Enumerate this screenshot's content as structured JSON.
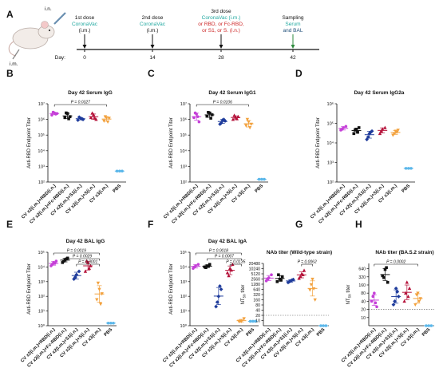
{
  "figure": {
    "panel_letters": [
      "A",
      "B",
      "C",
      "D",
      "E",
      "F",
      "G",
      "H"
    ],
    "timeline": {
      "route_labels": [
        "i.n.",
        "i.m."
      ],
      "day_label": "Day:",
      "doses": [
        {
          "day": 0,
          "title": "1st dose",
          "lines": [
            {
              "text": "CoronaVac",
              "color": "#21a8a0"
            },
            {
              "text": "(i.m.)",
              "color": "#111111"
            }
          ]
        },
        {
          "day": 14,
          "title": "2nd dose",
          "lines": [
            {
              "text": "CoronaVac",
              "color": "#21a8a0"
            },
            {
              "text": "(i.m.)",
              "color": "#111111"
            }
          ]
        },
        {
          "day": 28,
          "title": "3rd dose",
          "lines": [
            {
              "text": "CoronaVac (i.m.)",
              "color": "#21a8a0"
            },
            {
              "text": "or RBD, or Fc-RBD,",
              "color": "#cc2222"
            },
            {
              "text": "or S1, or S. (i.n.)",
              "color": "#cc2222"
            }
          ]
        },
        {
          "day": 42,
          "title": "Sampling",
          "lines": [
            {
              "text": "Serum",
              "color": "#21a8a0"
            },
            {
              "text": "and BAL",
              "color": "#1f4e79"
            }
          ]
        }
      ]
    },
    "group_labels": [
      "CV x2(i.m.)+RBD(i.n.)",
      "CV x2(i.m.)+Fc-RBD(i.n.)",
      "CV x2(i.m.)+S1(i.n.)",
      "CV x2(i.m.)+S(i.n.)",
      "CV x3(i.m.)",
      "PBS"
    ],
    "group_colors": [
      "#c53fd8",
      "#111111",
      "#1f3c9c",
      "#b5123a",
      "#f2a13d",
      "#5bb7ea"
    ],
    "group_markers": [
      "circle",
      "square",
      "diamond",
      "triangle",
      "triangle-down",
      "circle"
    ]
  },
  "chart_data": [
    {
      "panel": "B",
      "type": "scatter",
      "title": "Day 42 Serum IgG",
      "ylabel": "Anti-RBD Endpoint Titer",
      "scale": "log",
      "ylim": [
        100,
        10000000
      ],
      "yticks": [
        "10⁷",
        "10⁶",
        "10⁵",
        "10⁴",
        "10³",
        "10²"
      ],
      "comparisons": [
        {
          "from": 0,
          "to": 4,
          "label": "P = 0.0327"
        }
      ],
      "series": [
        {
          "values": [
            2600000,
            1900000,
            2400000,
            2900000,
            2200000
          ]
        },
        {
          "values": [
            2400000,
            1300000,
            1500000,
            2600000,
            1100000
          ]
        },
        {
          "values": [
            1200000,
            900000,
            1000000,
            1400000,
            1100000
          ]
        },
        {
          "values": [
            2000000,
            1300000,
            1000000,
            2500000,
            1200000
          ]
        },
        {
          "values": [
            1300000,
            800000,
            1200000,
            1500000,
            700000
          ]
        },
        {
          "values": [
            500,
            500,
            500
          ]
        }
      ]
    },
    {
      "panel": "C",
      "type": "scatter",
      "title": "Day 42 Serum IgG1",
      "ylabel": "Anti-RBD Endpoint Titer",
      "scale": "log",
      "ylim": [
        100,
        10000000
      ],
      "yticks": [
        "10⁷",
        "10⁶",
        "10⁵",
        "10⁴",
        "10³",
        "10²"
      ],
      "comparisons": [
        {
          "from": 0,
          "to": 4,
          "label": "P = 0.0106"
        }
      ],
      "series": [
        {
          "values": [
            2200000,
            1300000,
            700000,
            2600000,
            1500000
          ]
        },
        {
          "values": [
            2600000,
            1600000,
            2000000,
            2800000,
            1200000
          ]
        },
        {
          "values": [
            900000,
            500000,
            800000,
            600000,
            1000000
          ]
        },
        {
          "values": [
            1400000,
            1000000,
            1500000,
            1800000,
            1100000
          ]
        },
        {
          "values": [
            700000,
            400000,
            500000,
            1000000,
            300000
          ]
        },
        {
          "values": [
            150,
            150,
            150
          ]
        }
      ]
    },
    {
      "panel": "D",
      "type": "scatter",
      "title": "Day 42 Serum IgG2a",
      "ylabel": "Anti-RBD Endpoint Titer",
      "scale": "log",
      "ylim": [
        100,
        1000000
      ],
      "yticks": [
        "10⁶",
        "10⁵",
        "10⁴",
        "10³",
        "10²"
      ],
      "comparisons": [],
      "series": [
        {
          "values": [
            60000,
            45000,
            70000,
            50000
          ]
        },
        {
          "values": [
            50000,
            30000,
            60000,
            45000,
            35000
          ]
        },
        {
          "values": [
            30000,
            15000,
            40000,
            20000,
            35000
          ]
        },
        {
          "values": [
            50000,
            30000,
            60000,
            40000
          ]
        },
        {
          "values": [
            40000,
            25000,
            45000,
            30000,
            35000
          ]
        },
        {
          "values": [
            500,
            500,
            500
          ]
        }
      ]
    },
    {
      "panel": "E",
      "type": "scatter",
      "title": "Day 42 BAL IgG",
      "ylabel": "Anti-RBD Endpoint Titer",
      "scale": "log",
      "ylim": [
        1,
        100000
      ],
      "yticks": [
        "10⁵",
        "10⁴",
        "10³",
        "10²",
        "10¹",
        "10⁰"
      ],
      "comparisons": [
        {
          "from": 0,
          "to": 4,
          "label": "P = 0.0019"
        },
        {
          "from": 1,
          "to": 4,
          "label": "P = 0.0029"
        },
        {
          "from": 2,
          "to": 4,
          "label": "P = 0.0001"
        }
      ],
      "series": [
        {
          "values": [
            20000,
            12000,
            25000,
            15000,
            18000
          ]
        },
        {
          "values": [
            30000,
            20000,
            40000,
            25000,
            35000
          ]
        },
        {
          "values": [
            3000,
            1500,
            5000,
            2000
          ]
        },
        {
          "values": [
            20000,
            5000,
            12000,
            25000,
            8000
          ]
        },
        {
          "values": [
            300,
            60,
            150,
            800,
            30
          ]
        },
        {
          "values": [
            1.5,
            1.5,
            1.5
          ]
        }
      ]
    },
    {
      "panel": "F",
      "type": "scatter",
      "title": "Day 42 BAL IgA",
      "ylabel": "Anti-RBD Endpoint Titer",
      "scale": "log",
      "ylim": [
        1,
        100000
      ],
      "yticks": [
        "10⁵",
        "10⁴",
        "10³",
        "10²",
        "10¹",
        "10⁰"
      ],
      "comparisons": [
        {
          "from": 0,
          "to": 4,
          "label": "P = 0.0018"
        },
        {
          "from": 1,
          "to": 4,
          "label": "P = 0.0007"
        },
        {
          "from": 3,
          "to": 4,
          "label": "P = 0.0135"
        }
      ],
      "series": [
        {
          "values": [
            12000,
            8000,
            15000,
            10000
          ]
        },
        {
          "values": [
            12000,
            10000,
            15000,
            9000,
            11000
          ]
        },
        {
          "values": [
            100,
            20,
            300,
            40,
            500
          ]
        },
        {
          "values": [
            8000,
            4000,
            15000,
            2500,
            6000
          ]
        },
        {
          "values": [
            2,
            2,
            3,
            2
          ]
        },
        {
          "values": [
            2,
            2,
            2
          ]
        }
      ]
    },
    {
      "panel": "G",
      "type": "scatter",
      "title": "NAb titer (Wild-type strain)",
      "ylabel": "NT50 titer",
      "scale": "log",
      "ylim": [
        5,
        20480
      ],
      "detection_limit": 20,
      "yticks": [
        "20480",
        "10240",
        "5120",
        "2560",
        "1280",
        "640",
        "320",
        "160",
        "80",
        "40",
        "20",
        "10"
      ],
      "comparisons": [
        {
          "from": 3,
          "to": 4,
          "label": "P = 0.0062"
        }
      ],
      "series": [
        {
          "values": [
            3000,
            2000,
            4500,
            2600
          ]
        },
        {
          "values": [
            2500,
            1800,
            3500,
            4500,
            2200
          ]
        },
        {
          "values": [
            2000,
            1600,
            2400,
            1800,
            2200
          ]
        },
        {
          "values": [
            5000,
            2800,
            8000,
            3500,
            4500
          ]
        },
        {
          "values": [
            2500,
            600,
            160,
            1200,
            700
          ]
        },
        {
          "values": [
            5,
            5,
            5
          ]
        }
      ]
    },
    {
      "panel": "H",
      "type": "scatter",
      "title": "NAb titer (BA.5.2 strain)",
      "ylabel": "NT50 titer",
      "scale": "log",
      "ylim": [
        5,
        1000
      ],
      "detection_limit": 20,
      "yticks": [
        "640",
        "320",
        "160",
        "80",
        "40",
        "20",
        "10"
      ],
      "comparisons": [
        {
          "from": 0,
          "to": 4,
          "label": "P = 0.0002"
        }
      ],
      "series": [
        {
          "values": [
            80,
            40,
            25,
            60,
            35
          ]
        },
        {
          "values": [
            600,
            350,
            200,
            300,
            700
          ]
        },
        {
          "values": [
            120,
            30,
            60,
            40,
            90
          ]
        },
        {
          "values": [
            200,
            40,
            120,
            80,
            60
          ]
        },
        {
          "values": [
            80,
            30,
            50,
            70,
            40
          ]
        },
        {
          "values": [
            5,
            5,
            5
          ]
        }
      ]
    }
  ]
}
